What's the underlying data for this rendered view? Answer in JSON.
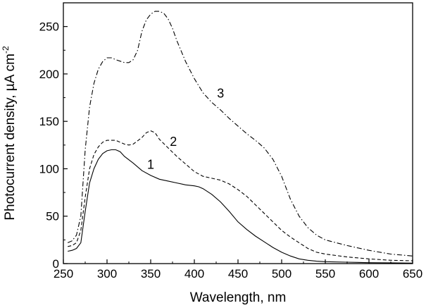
{
  "chart_data": {
    "type": "line",
    "xlabel": "Wavelength, nm",
    "ylabel_main": "Photocurrent density, µA cm",
    "ylabel_sup": "-2",
    "xlim": [
      250,
      650
    ],
    "ylim": [
      0,
      275
    ],
    "xticks": [
      250,
      300,
      350,
      400,
      450,
      500,
      550,
      600,
      650
    ],
    "yticks": [
      0,
      50,
      100,
      150,
      200,
      250
    ],
    "grid": false,
    "legend": "none",
    "series": [
      {
        "label": "1",
        "style": "solid",
        "label_at": [
          350,
          100
        ],
        "points": [
          [
            255,
            13
          ],
          [
            260,
            14
          ],
          [
            265,
            16
          ],
          [
            270,
            22
          ],
          [
            275,
            55
          ],
          [
            280,
            85
          ],
          [
            285,
            100
          ],
          [
            290,
            110
          ],
          [
            295,
            116
          ],
          [
            300,
            119
          ],
          [
            305,
            120
          ],
          [
            310,
            120
          ],
          [
            315,
            118
          ],
          [
            320,
            113
          ],
          [
            330,
            106
          ],
          [
            340,
            98
          ],
          [
            350,
            93
          ],
          [
            360,
            89
          ],
          [
            370,
            87
          ],
          [
            380,
            85
          ],
          [
            390,
            83
          ],
          [
            400,
            82
          ],
          [
            405,
            81
          ],
          [
            410,
            79
          ],
          [
            420,
            73
          ],
          [
            430,
            65
          ],
          [
            440,
            55
          ],
          [
            450,
            44
          ],
          [
            460,
            36
          ],
          [
            470,
            29
          ],
          [
            480,
            23
          ],
          [
            490,
            17
          ],
          [
            500,
            12
          ],
          [
            510,
            8
          ],
          [
            520,
            5
          ],
          [
            530,
            3.5
          ],
          [
            540,
            2.5
          ],
          [
            550,
            2
          ],
          [
            575,
            1.5
          ],
          [
            600,
            1
          ],
          [
            625,
            0.8
          ],
          [
            650,
            0.5
          ]
        ]
      },
      {
        "label": "2",
        "style": "dashed",
        "label_at": [
          376,
          124
        ],
        "points": [
          [
            255,
            18
          ],
          [
            260,
            19
          ],
          [
            265,
            22
          ],
          [
            270,
            35
          ],
          [
            275,
            70
          ],
          [
            280,
            100
          ],
          [
            285,
            115
          ],
          [
            290,
            123
          ],
          [
            295,
            128
          ],
          [
            300,
            130
          ],
          [
            310,
            130
          ],
          [
            315,
            128
          ],
          [
            320,
            126
          ],
          [
            325,
            125
          ],
          [
            330,
            126
          ],
          [
            340,
            133
          ],
          [
            345,
            138
          ],
          [
            350,
            140
          ],
          [
            355,
            138
          ],
          [
            360,
            131
          ],
          [
            370,
            122
          ],
          [
            380,
            113
          ],
          [
            390,
            105
          ],
          [
            400,
            97
          ],
          [
            410,
            92
          ],
          [
            420,
            90
          ],
          [
            430,
            88
          ],
          [
            440,
            84
          ],
          [
            450,
            78
          ],
          [
            460,
            71
          ],
          [
            470,
            62
          ],
          [
            480,
            53
          ],
          [
            490,
            44
          ],
          [
            500,
            35
          ],
          [
            510,
            28
          ],
          [
            520,
            22
          ],
          [
            530,
            16
          ],
          [
            540,
            12
          ],
          [
            550,
            10
          ],
          [
            575,
            7
          ],
          [
            600,
            5
          ],
          [
            625,
            3.5
          ],
          [
            650,
            3
          ]
        ]
      },
      {
        "label": "3",
        "style": "dashdot",
        "label_at": [
          430,
          175
        ],
        "points": [
          [
            255,
            22
          ],
          [
            260,
            24
          ],
          [
            265,
            30
          ],
          [
            270,
            50
          ],
          [
            275,
            120
          ],
          [
            280,
            165
          ],
          [
            285,
            190
          ],
          [
            290,
            205
          ],
          [
            295,
            213
          ],
          [
            300,
            217
          ],
          [
            305,
            217
          ],
          [
            310,
            215
          ],
          [
            320,
            212
          ],
          [
            325,
            212
          ],
          [
            330,
            215
          ],
          [
            335,
            225
          ],
          [
            340,
            245
          ],
          [
            345,
            257
          ],
          [
            350,
            263
          ],
          [
            355,
            266
          ],
          [
            360,
            266
          ],
          [
            365,
            264
          ],
          [
            370,
            258
          ],
          [
            375,
            248
          ],
          [
            380,
            235
          ],
          [
            390,
            213
          ],
          [
            400,
            195
          ],
          [
            410,
            180
          ],
          [
            420,
            170
          ],
          [
            430,
            162
          ],
          [
            440,
            153
          ],
          [
            450,
            145
          ],
          [
            460,
            137
          ],
          [
            470,
            130
          ],
          [
            480,
            122
          ],
          [
            490,
            110
          ],
          [
            500,
            92
          ],
          [
            510,
            68
          ],
          [
            520,
            50
          ],
          [
            530,
            38
          ],
          [
            540,
            30
          ],
          [
            550,
            25
          ],
          [
            575,
            19
          ],
          [
            600,
            14
          ],
          [
            625,
            10
          ],
          [
            650,
            8
          ]
        ]
      }
    ]
  }
}
